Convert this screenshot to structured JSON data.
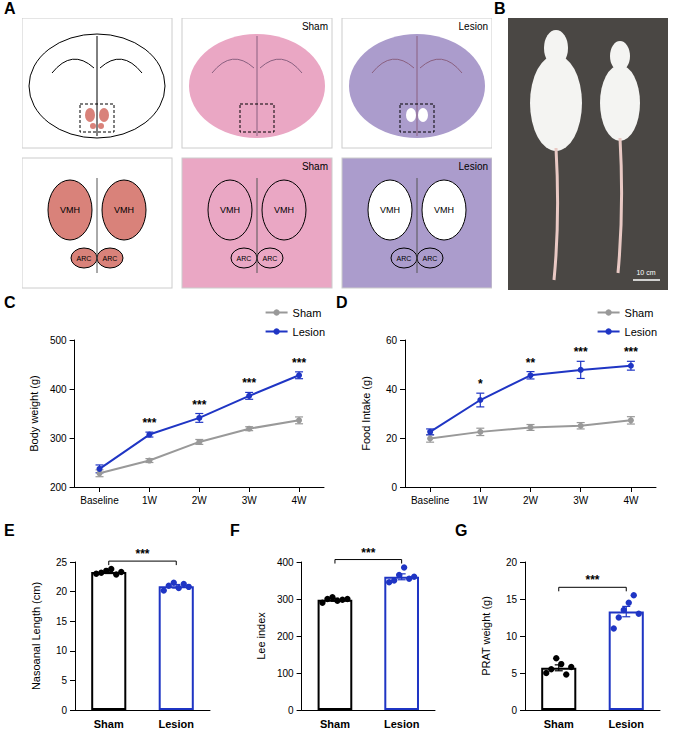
{
  "image_panels": [
    {
      "panel": "A",
      "labels": [
        "Sham",
        "Lesion"
      ],
      "regions": [
        "VMH",
        "ARC"
      ]
    },
    {
      "panel": "B",
      "scale_label": "10 cm"
    }
  ],
  "chart_data": [
    {
      "panel": "C",
      "type": "line",
      "y_label": "Body weight (g)",
      "categories": [
        "Baseline",
        "1W",
        "2W",
        "3W",
        "4W"
      ],
      "series": [
        {
          "name": "Sham",
          "color": "#999999",
          "marker": "circle",
          "line_style": "solid",
          "values": [
            228,
            254,
            292,
            319,
            336
          ],
          "errors": [
            7,
            4,
            5,
            4,
            7
          ]
        },
        {
          "name": "Lesion",
          "color": "#1f35c4",
          "marker": "circle",
          "line_style": "solid",
          "values": [
            237,
            307,
            341,
            386,
            428
          ],
          "errors": [
            8,
            5,
            9,
            7,
            7
          ]
        }
      ],
      "annotations": [
        null,
        "***",
        "***",
        "***",
        "***"
      ],
      "ylim": [
        200,
        500
      ],
      "yticks": [
        200,
        300,
        400,
        500
      ],
      "grid": false,
      "legend": "upper right"
    },
    {
      "panel": "D",
      "type": "line",
      "y_label": "Food Intake (g)",
      "categories": [
        "Baseline",
        "1W",
        "2W",
        "3W",
        "4W"
      ],
      "series": [
        {
          "name": "Sham",
          "color": "#999999",
          "marker": "circle",
          "line_style": "solid",
          "values": [
            19.8,
            22.5,
            24.3,
            25,
            27.2
          ],
          "errors": [
            1.5,
            1.5,
            1.2,
            1.3,
            1.5
          ]
        },
        {
          "name": "Lesion",
          "color": "#1f35c4",
          "marker": "circle",
          "line_style": "solid",
          "values": [
            22.5,
            35.5,
            45.6,
            47.8,
            49.5
          ],
          "errors": [
            1.2,
            2.8,
            1.5,
            3.5,
            1.8
          ]
        }
      ],
      "annotations": [
        null,
        "*",
        "**",
        "***",
        "***"
      ],
      "ylim": [
        0,
        60
      ],
      "yticks": [
        0,
        20,
        40,
        60
      ],
      "grid": false,
      "legend": "upper right"
    },
    {
      "panel": "E",
      "type": "bar",
      "y_label": "Nasoanal Length (cm)",
      "categories": [
        "Sham",
        "Lesion"
      ],
      "values": [
        23.3,
        20.9
      ],
      "errors": [
        0.25,
        0.3
      ],
      "colors": [
        "#000000",
        "#1f35c4"
      ],
      "points": [
        [
          23.0,
          23.2,
          23.5,
          23.8,
          22.9,
          23.3
        ],
        [
          20.2,
          21.0,
          21.5,
          20.6,
          21.3,
          20.8
        ]
      ],
      "annotation": "***",
      "ylim": [
        0,
        25
      ],
      "yticks": [
        0,
        5,
        10,
        15,
        20,
        25
      ],
      "grid": false
    },
    {
      "panel": "F",
      "type": "bar",
      "y_label": "Lee index",
      "categories": [
        "Sham",
        "Lesion"
      ],
      "values": [
        298,
        360
      ],
      "errors": [
        4,
        8
      ],
      "colors": [
        "#000000",
        "#1f35c4"
      ],
      "points": [
        [
          290,
          300,
          305,
          295,
          298,
          300
        ],
        [
          345,
          350,
          365,
          385,
          355,
          360
        ]
      ],
      "annotation": "***",
      "ylim": [
        0,
        400
      ],
      "yticks": [
        0,
        100,
        200,
        300,
        400
      ],
      "grid": false
    },
    {
      "panel": "G",
      "type": "bar",
      "y_label": "PRAT weight (g)",
      "categories": [
        "Sham",
        "Lesion"
      ],
      "values": [
        5.7,
        13.3
      ],
      "errors": [
        0.4,
        0.7
      ],
      "colors": [
        "#000000",
        "#1f35c4"
      ],
      "points": [
        [
          5.0,
          5.5,
          7.0,
          6.2,
          4.8,
          5.8
        ],
        [
          11.0,
          12.5,
          13.5,
          14.5,
          15.5,
          13.0
        ]
      ],
      "annotation": "***",
      "ylim": [
        0,
        20
      ],
      "yticks": [
        0,
        5,
        10,
        15,
        20
      ],
      "grid": false
    }
  ]
}
